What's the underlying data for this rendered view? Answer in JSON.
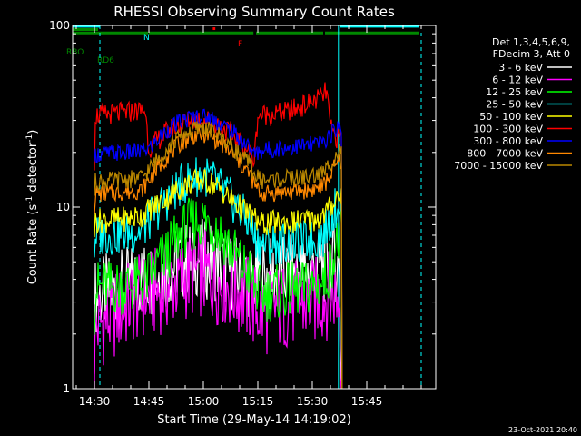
{
  "chart_data": {
    "type": "line",
    "title": "RHESSI Observing Summary Count Rates",
    "xlabel": "Start Time (29-May-14 14:19:02)",
    "ylabel_main": "Count Rate (s",
    "ylabel_sup1": "-1",
    "ylabel_mid": " detector",
    "ylabel_sup2": "-1",
    "ylabel_end": ")",
    "y_scale": "log",
    "ylim": [
      1,
      100
    ],
    "xlim_minutes": [
      -36,
      64
    ],
    "x_ticks": [
      {
        "t": -30,
        "label": "14:30"
      },
      {
        "t": -15,
        "label": "14:45"
      },
      {
        "t": 0,
        "label": "15:00"
      },
      {
        "t": 15,
        "label": "15:15"
      },
      {
        "t": 30,
        "label": "15:30"
      },
      {
        "t": 45,
        "label": "15:45"
      }
    ],
    "y_ticks": [
      {
        "v": 1,
        "label": "1"
      },
      {
        "v": 10,
        "label": "10"
      },
      {
        "v": 100,
        "label": "100"
      }
    ],
    "legend": {
      "header1": "Det 1,3,4,5,6,9,",
      "header2": "FDecim 3, Att 0",
      "placement": "right"
    },
    "series": [
      {
        "name": "3 - 6 keV",
        "color": "#ffffff",
        "points": [
          [
            -30,
            2
          ],
          [
            -29.8,
            3.2
          ],
          [
            -26,
            3.4
          ],
          [
            -22,
            3.6
          ],
          [
            -18,
            4
          ],
          [
            -14,
            4.2
          ],
          [
            -10,
            4.5
          ],
          [
            -6,
            5
          ],
          [
            -3,
            5.3
          ],
          [
            0,
            5.2
          ],
          [
            3,
            5
          ],
          [
            6,
            4.6
          ],
          [
            9,
            4.3
          ],
          [
            13,
            4
          ],
          [
            16,
            4.1
          ],
          [
            20,
            4.2
          ],
          [
            25,
            4.3
          ],
          [
            30,
            4.5
          ],
          [
            33,
            4.8
          ],
          [
            36,
            5
          ],
          [
            37.5,
            4.6
          ],
          [
            38,
            1
          ]
        ]
      },
      {
        "name": "6 - 12 keV",
        "color": "#ff00ff",
        "points": [
          [
            -30,
            1
          ],
          [
            -29.8,
            2.2
          ],
          [
            -25,
            2.5
          ],
          [
            -20,
            3
          ],
          [
            -15,
            3.3
          ],
          [
            -10,
            3.6
          ],
          [
            -6,
            4
          ],
          [
            -3,
            4.3
          ],
          [
            0,
            4.3
          ],
          [
            3,
            4
          ],
          [
            6,
            3.8
          ],
          [
            9,
            3.5
          ],
          [
            13,
            3
          ],
          [
            16,
            2.6
          ],
          [
            20,
            2.8
          ],
          [
            25,
            2.9
          ],
          [
            30,
            3
          ],
          [
            33,
            3.2
          ],
          [
            36,
            3.4
          ],
          [
            37.5,
            3
          ],
          [
            38,
            1
          ]
        ]
      },
      {
        "name": "12 - 25 keV",
        "color": "#00ff00",
        "points": [
          [
            -30,
            2.8
          ],
          [
            -29.8,
            3.6
          ],
          [
            -25,
            3.6
          ],
          [
            -20,
            3.7
          ],
          [
            -16,
            3.8
          ],
          [
            -14,
            4.5
          ],
          [
            -10,
            5.5
          ],
          [
            -7,
            6.8
          ],
          [
            -4,
            7.8
          ],
          [
            -2,
            8.4
          ],
          [
            0,
            8.5
          ],
          [
            2,
            8.2
          ],
          [
            4,
            7.5
          ],
          [
            7,
            6.2
          ],
          [
            10,
            5
          ],
          [
            13,
            4.2
          ],
          [
            14,
            3.6
          ],
          [
            16,
            3.3
          ],
          [
            20,
            3.4
          ],
          [
            25,
            3.5
          ],
          [
            30,
            3.6
          ],
          [
            33,
            3.8
          ],
          [
            35,
            4.8
          ],
          [
            36.5,
            6
          ],
          [
            38,
            7
          ],
          [
            38.2,
            1
          ]
        ]
      },
      {
        "name": "25 - 50 keV",
        "color": "#00ffff",
        "points": [
          [
            -30,
            6
          ],
          [
            -29.8,
            7
          ],
          [
            -25,
            7.1
          ],
          [
            -20,
            7.2
          ],
          [
            -17,
            7.4
          ],
          [
            -14,
            9
          ],
          [
            -10,
            11
          ],
          [
            -7,
            12.8
          ],
          [
            -4,
            14
          ],
          [
            -2,
            14.8
          ],
          [
            0,
            15
          ],
          [
            2,
            14.4
          ],
          [
            4,
            13.2
          ],
          [
            7,
            11.5
          ],
          [
            10,
            9.5
          ],
          [
            13,
            8
          ],
          [
            14,
            6.8
          ],
          [
            16,
            6.2
          ],
          [
            20,
            6.3
          ],
          [
            25,
            6.4
          ],
          [
            30,
            6.5
          ],
          [
            33,
            6.9
          ],
          [
            35,
            8.5
          ],
          [
            36.5,
            10
          ],
          [
            38,
            11
          ],
          [
            38.2,
            1
          ]
        ]
      },
      {
        "name": "50 - 100 keV",
        "color": "#ffff00",
        "points": [
          [
            -30,
            7.5
          ],
          [
            -29.8,
            8.4
          ],
          [
            -25,
            8.5
          ],
          [
            -20,
            8.7
          ],
          [
            -17,
            9
          ],
          [
            -14,
            10
          ],
          [
            -10,
            11.2
          ],
          [
            -7,
            12.5
          ],
          [
            -4,
            13.4
          ],
          [
            -2,
            13.9
          ],
          [
            0,
            14
          ],
          [
            2,
            13.6
          ],
          [
            4,
            12.8
          ],
          [
            7,
            11.3
          ],
          [
            10,
            10
          ],
          [
            13,
            9
          ],
          [
            14,
            8.6
          ],
          [
            16,
            8.1
          ],
          [
            20,
            8.2
          ],
          [
            25,
            8.3
          ],
          [
            30,
            8.5
          ],
          [
            33,
            8.9
          ],
          [
            35,
            10
          ],
          [
            36.5,
            11.2
          ],
          [
            38,
            12
          ],
          [
            38.2,
            1
          ]
        ]
      },
      {
        "name": "100 - 300 keV",
        "color": "#ff0000",
        "points": [
          [
            -30,
            18
          ],
          [
            -29.8,
            32
          ],
          [
            -25,
            32.5
          ],
          [
            -20,
            33.5
          ],
          [
            -18,
            34
          ],
          [
            -16,
            34
          ],
          [
            -15,
            21
          ],
          [
            -13,
            23
          ],
          [
            -10,
            26
          ],
          [
            -7,
            28.5
          ],
          [
            -4,
            30
          ],
          [
            -2,
            30.5
          ],
          [
            0,
            30.5
          ],
          [
            2,
            30
          ],
          [
            4,
            28.5
          ],
          [
            7,
            26
          ],
          [
            10,
            23
          ],
          [
            13,
            20
          ],
          [
            14,
            18
          ],
          [
            15,
            32
          ],
          [
            18,
            32.5
          ],
          [
            22,
            33
          ],
          [
            26,
            35
          ],
          [
            30,
            38
          ],
          [
            33,
            41
          ],
          [
            34,
            44
          ],
          [
            35,
            27
          ],
          [
            36,
            25
          ],
          [
            37,
            24
          ],
          [
            38,
            24
          ],
          [
            38.2,
            1
          ]
        ]
      },
      {
        "name": "300 - 800 keV",
        "color": "#0000ff",
        "points": [
          [
            -30,
            16
          ],
          [
            -29.8,
            19.5
          ],
          [
            -25,
            19.8
          ],
          [
            -20,
            20
          ],
          [
            -17,
            20.3
          ],
          [
            -15,
            21
          ],
          [
            -13,
            23
          ],
          [
            -10,
            26.5
          ],
          [
            -7,
            29
          ],
          [
            -4,
            30.8
          ],
          [
            -2,
            31.5
          ],
          [
            0,
            31.5
          ],
          [
            2,
            31
          ],
          [
            4,
            29.5
          ],
          [
            7,
            26.8
          ],
          [
            10,
            24
          ],
          [
            13,
            21
          ],
          [
            14,
            19.5
          ],
          [
            16,
            20.5
          ],
          [
            20,
            21
          ],
          [
            25,
            21.5
          ],
          [
            30,
            22
          ],
          [
            33,
            22.8
          ],
          [
            35,
            25
          ],
          [
            36.5,
            27
          ],
          [
            38,
            28
          ],
          [
            38.2,
            1
          ]
        ]
      },
      {
        "name": "800 - 7000 keV",
        "color": "#ff8800",
        "points": [
          [
            -30,
            10
          ],
          [
            -29.8,
            11.8
          ],
          [
            -25,
            12
          ],
          [
            -20,
            12.2
          ],
          [
            -17,
            12.4
          ],
          [
            -15,
            14
          ],
          [
            -13,
            16
          ],
          [
            -10,
            19
          ],
          [
            -7,
            22
          ],
          [
            -4,
            24
          ],
          [
            -2,
            25
          ],
          [
            0,
            25.2
          ],
          [
            2,
            24.5
          ],
          [
            4,
            23
          ],
          [
            7,
            20.5
          ],
          [
            10,
            17.5
          ],
          [
            13,
            15
          ],
          [
            14,
            13.2
          ],
          [
            16,
            11.8
          ],
          [
            20,
            12
          ],
          [
            25,
            12.2
          ],
          [
            30,
            12.5
          ],
          [
            33,
            13
          ],
          [
            35,
            15
          ],
          [
            36.5,
            17
          ],
          [
            38,
            18
          ],
          [
            38.2,
            1
          ]
        ]
      },
      {
        "name": "7000 - 15000 keV",
        "color": "#bb8800",
        "points": [
          [
            -30,
            12
          ],
          [
            -29.8,
            13.8
          ],
          [
            -25,
            14
          ],
          [
            -20,
            14.2
          ],
          [
            -17,
            14.5
          ],
          [
            -15,
            16
          ],
          [
            -13,
            18
          ],
          [
            -10,
            21
          ],
          [
            -7,
            24
          ],
          [
            -4,
            26
          ],
          [
            -2,
            27
          ],
          [
            0,
            27.2
          ],
          [
            2,
            26.5
          ],
          [
            4,
            25
          ],
          [
            7,
            22.5
          ],
          [
            10,
            19.5
          ],
          [
            13,
            17
          ],
          [
            14,
            15.2
          ],
          [
            16,
            14
          ],
          [
            20,
            14.2
          ],
          [
            25,
            14.4
          ],
          [
            30,
            14.8
          ],
          [
            33,
            15.3
          ],
          [
            35,
            17.5
          ],
          [
            36.5,
            19.5
          ],
          [
            38,
            20.5
          ],
          [
            38.2,
            1
          ]
        ]
      }
    ],
    "flags": [
      {
        "label": "N",
        "color": "#00ffff",
        "y": 99,
        "segments": [
          [
            -36,
            -28.5
          ],
          [
            37.5,
            64
          ]
        ]
      },
      {
        "label": "RBO",
        "color": "#008800",
        "y": 95,
        "segments": [
          [
            -36,
            -29
          ]
        ]
      },
      {
        "label": "RD6",
        "color": "#008800",
        "y": 91,
        "segments": [
          [
            -36,
            -15.2
          ],
          [
            -15,
            13.8
          ],
          [
            14.5,
            33
          ],
          [
            33.5,
            64
          ]
        ]
      },
      {
        "label": "F",
        "color": "#ff0000",
        "y": 96,
        "segments": [
          [
            2.6,
            3.3
          ]
        ]
      }
    ],
    "vlines": [
      {
        "t": -28.5,
        "color": "#00ffff",
        "style": "dashed"
      },
      {
        "t": 37.2,
        "color": "#00ffff",
        "style": "solid"
      },
      {
        "t": 60,
        "color": "#00ffff",
        "style": "dashed"
      }
    ],
    "stamp": "23-Oct-2021 20:40"
  }
}
